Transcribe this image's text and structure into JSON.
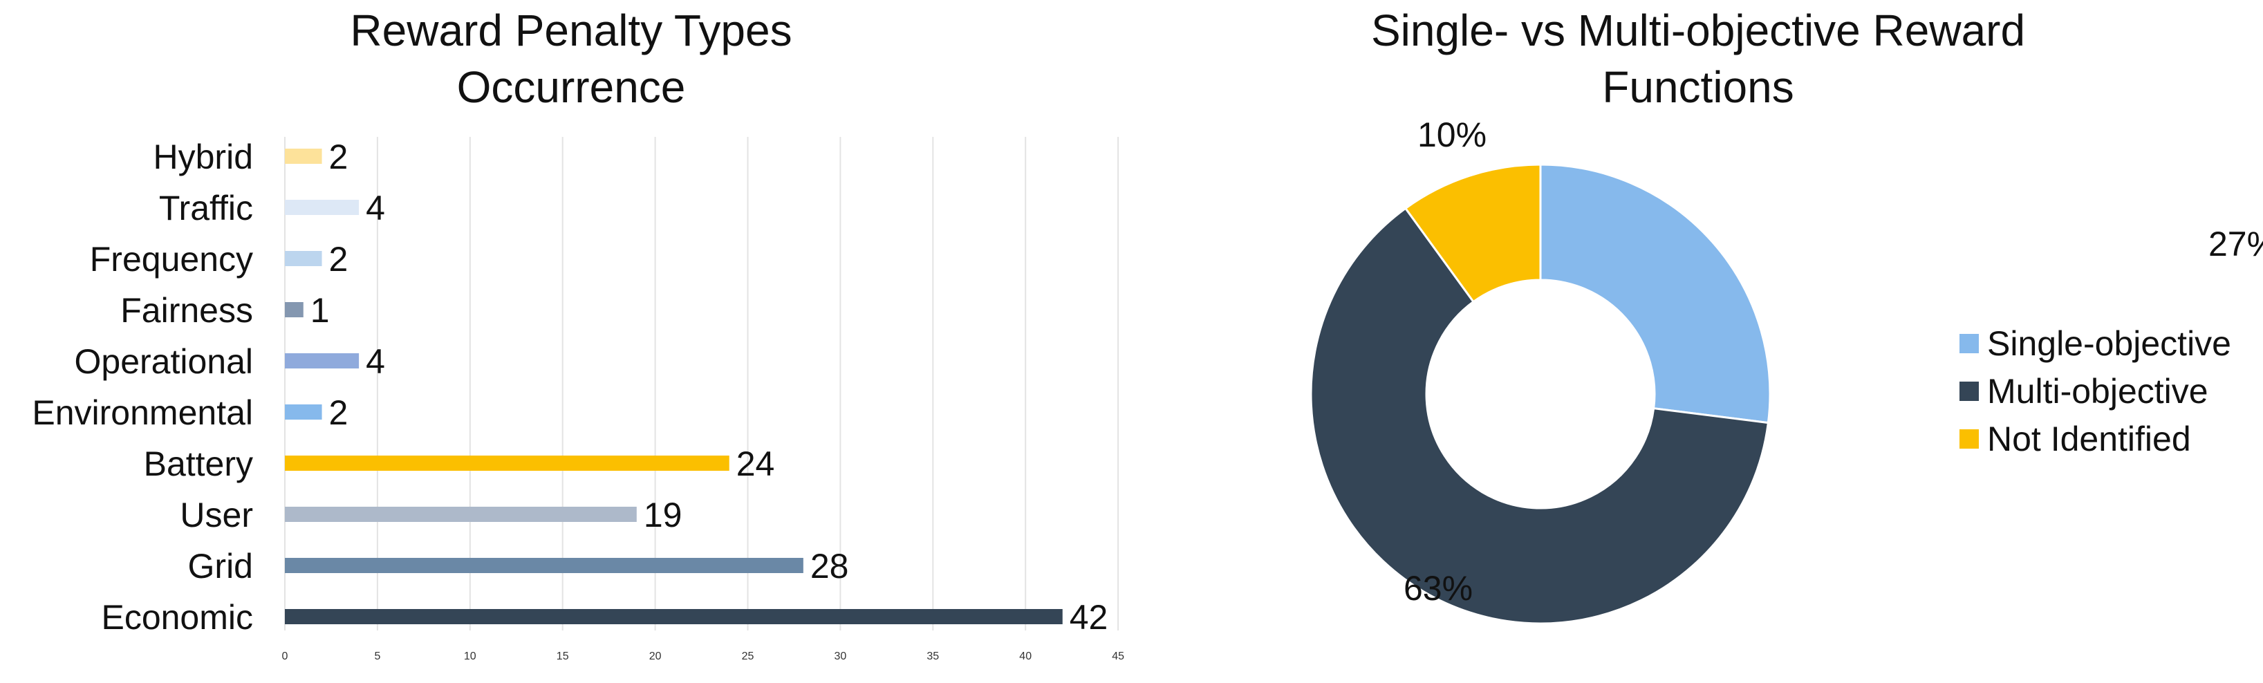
{
  "chart_data": [
    {
      "type": "bar",
      "orientation": "horizontal",
      "title_lines": [
        "Reward Penalty Types",
        "Occurrence"
      ],
      "categories": [
        "Hybrid",
        "Traffic",
        "Frequency",
        "Fairness",
        "Operational",
        "Environmental",
        "Battery",
        "User",
        "Grid",
        "Economic"
      ],
      "values": [
        2,
        4,
        2,
        1,
        4,
        2,
        24,
        19,
        28,
        42
      ],
      "value_labels": [
        "2",
        "4",
        "2",
        "1",
        "4",
        "2",
        "24",
        "19",
        "28",
        "42"
      ],
      "colors": [
        "#fde29a",
        "#dde8f6",
        "#bcd5ee",
        "#8497b0",
        "#8faadc",
        "#86b9ec",
        "#fbbf00",
        "#adb9ca",
        "#6a88a6",
        "#344556"
      ],
      "xticks": [
        "0",
        "5",
        "10",
        "15",
        "20",
        "25",
        "30",
        "35",
        "40",
        "45"
      ],
      "xlim": [
        0,
        45
      ],
      "grid": "vertical gridlines",
      "xlabel": "",
      "ylabel": ""
    },
    {
      "type": "pie",
      "style": "donut",
      "title_lines": [
        "Single- vs Multi-objective Reward",
        "Functions"
      ],
      "labels": [
        "Single-objective",
        "Multi-objective",
        "Not Identified"
      ],
      "values": [
        27,
        63,
        10
      ],
      "value_labels": [
        "27%",
        "63%",
        "10%"
      ],
      "colors": [
        "#86b9ec",
        "#344556",
        "#fbbf00"
      ],
      "legend_position": "right"
    }
  ]
}
